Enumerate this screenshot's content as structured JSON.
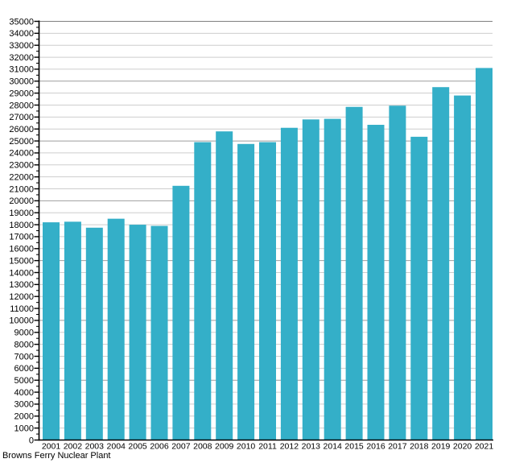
{
  "caption": "Browns Ferry Nuclear Plant",
  "chart_data": {
    "type": "bar",
    "title": "Browns Ferry Nuclear Plant",
    "title_position": "bottom-left",
    "categories": [
      "2001",
      "2002",
      "2003",
      "2004",
      "2005",
      "2006",
      "2007",
      "2008",
      "2009",
      "2010",
      "2011",
      "2012",
      "2013",
      "2014",
      "2015",
      "2016",
      "2017",
      "2018",
      "2019",
      "2020",
      "2021"
    ],
    "values": [
      18200,
      18250,
      17750,
      18500,
      18000,
      17900,
      21250,
      24900,
      25800,
      24750,
      24900,
      26100,
      26800,
      26850,
      27850,
      26350,
      27950,
      25350,
      29500,
      28800,
      31100
    ],
    "xlabel": "",
    "ylabel": "",
    "ylim": [
      0,
      35000
    ],
    "ytick_interval": 1000,
    "ytick_minor_interval": 500,
    "grid": "horizontal",
    "legend": "none",
    "bar_color": "#34AFC8",
    "colors": {
      "grid_minor": "#cdcdcd",
      "grid_major": "#9e9e9e",
      "grid_top": "#7f7f7f",
      "axis": "#000000",
      "text": "#000000",
      "background": "#ffffff"
    }
  }
}
